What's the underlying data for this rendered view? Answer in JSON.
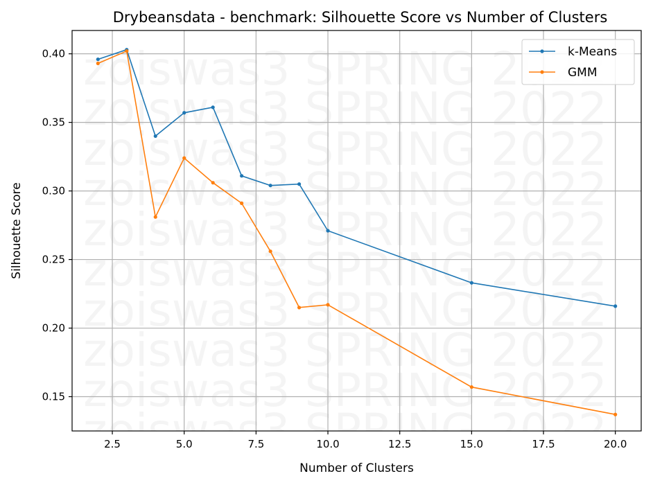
{
  "watermark": "zoiswas3 SPRING 2022",
  "chart_data": {
    "type": "line",
    "title": "Drybeansdata - benchmark: Silhouette Score vs Number of Clusters",
    "xlabel": "Number of Clusters",
    "ylabel": "Silhouette Score",
    "xlim": [
      1.1,
      20.9
    ],
    "ylim": [
      0.125,
      0.417
    ],
    "xticks": [
      2.5,
      5.0,
      7.5,
      10.0,
      12.5,
      15.0,
      17.5,
      20.0
    ],
    "xtick_labels": [
      "2.5",
      "5.0",
      "7.5",
      "10.0",
      "12.5",
      "15.0",
      "17.5",
      "20.0"
    ],
    "yticks": [
      0.15,
      0.2,
      0.25,
      0.3,
      0.35,
      0.4
    ],
    "ytick_labels": [
      "0.15",
      "0.20",
      "0.25",
      "0.30",
      "0.35",
      "0.40"
    ],
    "grid": true,
    "legend_position": "top-right",
    "series": [
      {
        "name": "k-Means",
        "color": "#1f77b4",
        "x": [
          2,
          3,
          4,
          5,
          6,
          7,
          8,
          9,
          10,
          15,
          20
        ],
        "y": [
          0.396,
          0.403,
          0.34,
          0.357,
          0.361,
          0.311,
          0.304,
          0.305,
          0.271,
          0.233,
          0.216
        ]
      },
      {
        "name": "GMM",
        "color": "#ff7f0e",
        "x": [
          2,
          3,
          4,
          5,
          6,
          7,
          8,
          9,
          10,
          15,
          20
        ],
        "y": [
          0.393,
          0.402,
          0.281,
          0.324,
          0.306,
          0.291,
          0.256,
          0.215,
          0.217,
          0.157,
          0.137
        ]
      }
    ]
  }
}
